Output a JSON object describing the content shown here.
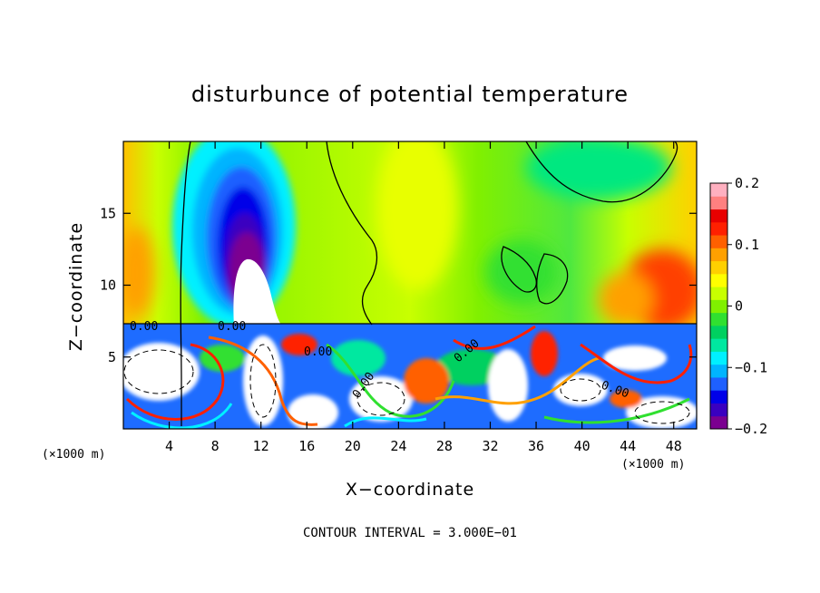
{
  "chart_data": {
    "type": "heatmap",
    "title": "disturbunce of potential temperature",
    "xlabel": "X−coordinate",
    "ylabel": "Z−coordinate",
    "x_unit_label": "(×1000 m)",
    "x_unit_label_right": "(×1000 m)",
    "xlim": [
      0,
      50
    ],
    "ylim": [
      0,
      20
    ],
    "x_ticks": [
      "4",
      "8",
      "12",
      "16",
      "20",
      "24",
      "28",
      "32",
      "36",
      "40",
      "44",
      "48"
    ],
    "x_tick_values": [
      4,
      8,
      12,
      16,
      20,
      24,
      28,
      32,
      36,
      40,
      44,
      48
    ],
    "y_ticks": [
      "5",
      "10",
      "15"
    ],
    "y_tick_values": [
      5,
      10,
      15
    ],
    "colorbar": {
      "min": -0.2,
      "max": 0.2,
      "labels": [
        "0.2",
        "0.1",
        "0",
        "−0.1",
        "−0.2"
      ],
      "label_values": [
        0.2,
        0.1,
        0,
        -0.1,
        -0.2
      ],
      "colors": [
        "#7b0090",
        "#3a00c0",
        "#0000e8",
        "#1e60ff",
        "#00b4ff",
        "#00f0ff",
        "#00e8a0",
        "#00d060",
        "#30e030",
        "#80f000",
        "#c8ff00",
        "#ffff00",
        "#ffd000",
        "#ffa000",
        "#ff6000",
        "#ff2000",
        "#e80000",
        "#ff8080",
        "#ffb0c0"
      ]
    },
    "contour_labels": [
      "0.00",
      "0.00",
      "0.00",
      "0.00",
      "0.00",
      "0.00"
    ],
    "contour_interval_text": "CONTOUR INTERVAL = 3.000E−01",
    "grid": false
  }
}
